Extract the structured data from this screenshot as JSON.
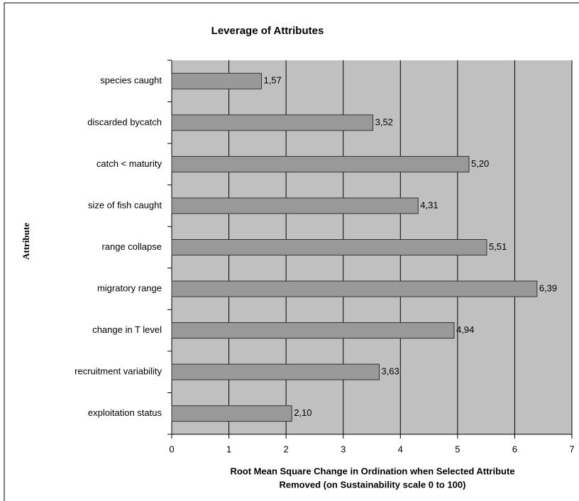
{
  "chart_data": {
    "type": "bar",
    "orientation": "horizontal",
    "title": "Leverage of Attributes",
    "ylabel": "Attribute",
    "xlabel": [
      "Root Mean Square Change in Ordination when Selected Attribute",
      "Removed (on Sustainability scale 0 to 100)"
    ],
    "categories": [
      "species caught",
      "discarded bycatch",
      "catch < maturity",
      "size of fish caught",
      "range collapse",
      "migratory range",
      "change in T level",
      "recruitment variability",
      "exploitation status"
    ],
    "values": [
      1.57,
      3.52,
      5.2,
      4.31,
      5.51,
      6.39,
      4.94,
      3.63,
      2.1
    ],
    "value_labels": [
      "1,57",
      "3,52",
      "5,20",
      "4,31",
      "5,51",
      "6,39",
      "4,94",
      "3,63",
      "2,10"
    ],
    "color": "#999999",
    "xlim": [
      0,
      7
    ],
    "xticks": [
      0,
      1,
      2,
      3,
      4,
      5,
      6,
      7
    ],
    "grid": true
  }
}
